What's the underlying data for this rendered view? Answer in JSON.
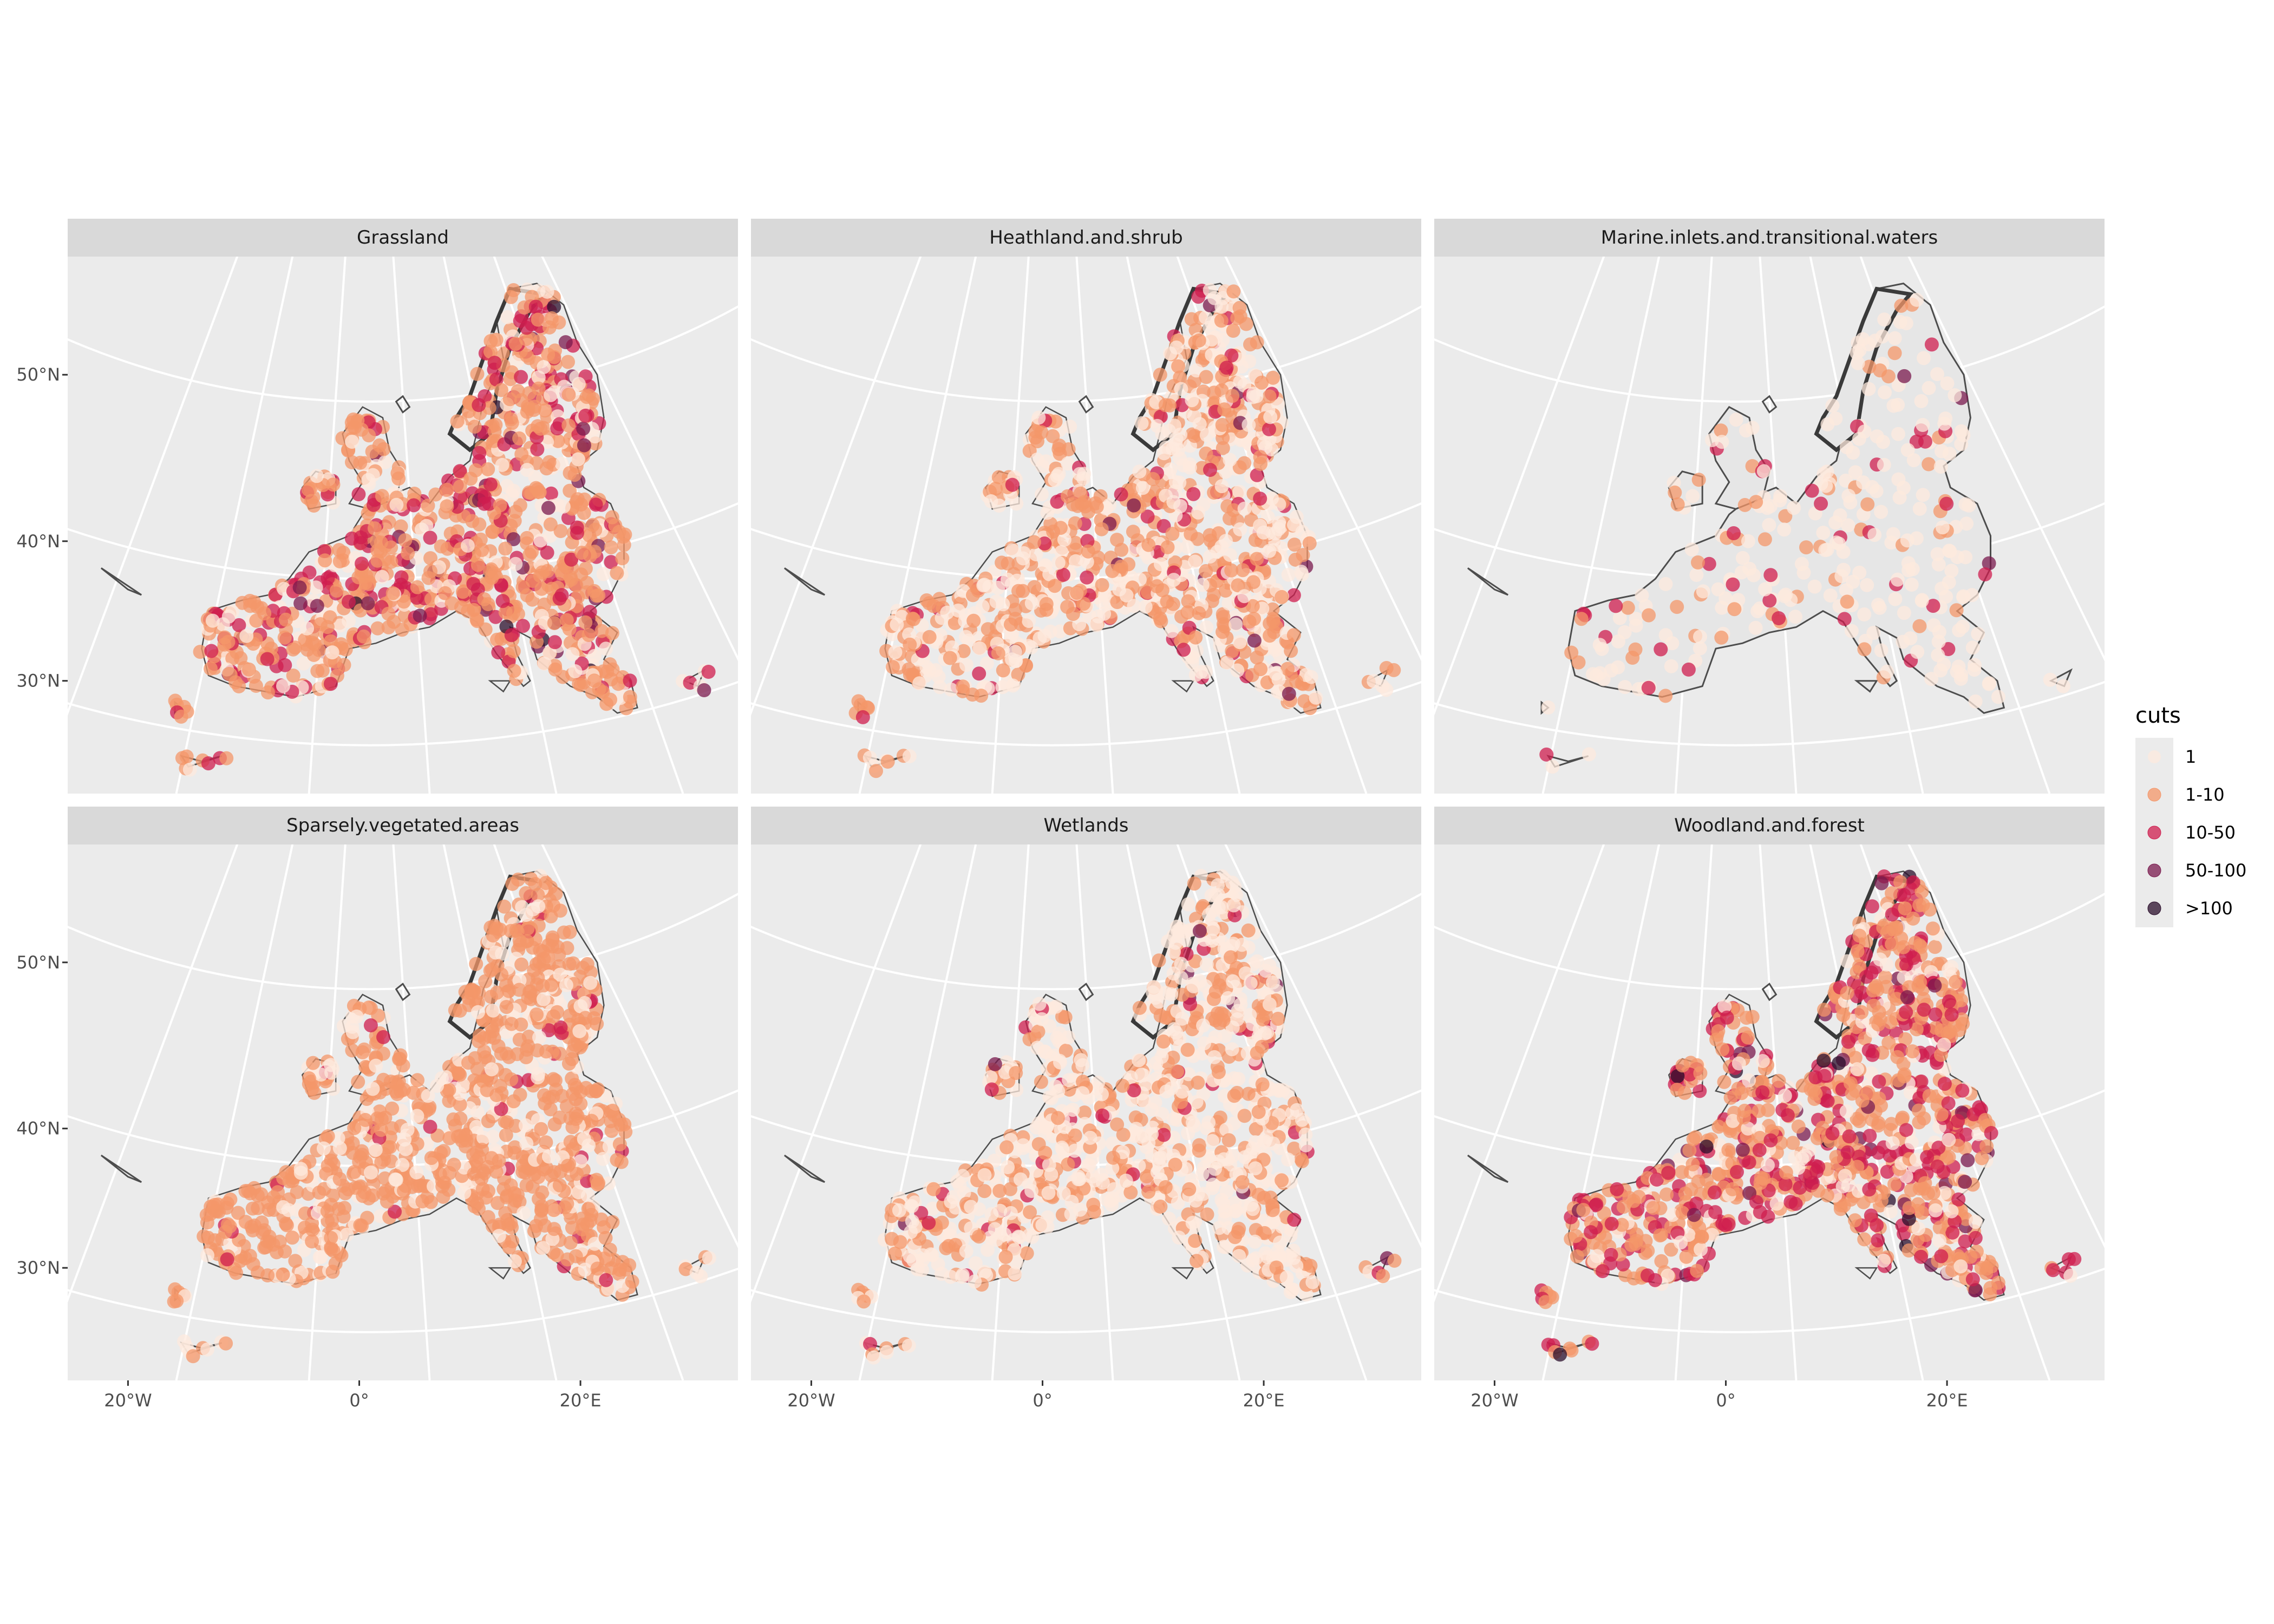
{
  "figure": {
    "panels": [
      {
        "id": "grassland",
        "label": "Grassland",
        "mix": [
          0.18,
          0.55,
          0.22,
          0.04,
          0.01
        ]
      },
      {
        "id": "heathland",
        "label": "Heathland.and.shrub",
        "mix": [
          0.45,
          0.48,
          0.06,
          0.01,
          0.0
        ]
      },
      {
        "id": "marine",
        "label": "Marine.inlets.and.transitional.waters",
        "mix": [
          0.7,
          0.2,
          0.09,
          0.01,
          0.0
        ]
      },
      {
        "id": "sparse",
        "label": "Sparsely.vegetated.areas",
        "mix": [
          0.25,
          0.7,
          0.05,
          0.0,
          0.0
        ]
      },
      {
        "id": "wetlands",
        "label": "Wetlands",
        "mix": [
          0.6,
          0.34,
          0.05,
          0.01,
          0.0
        ]
      },
      {
        "id": "woodland",
        "label": "Woodland.and.forest",
        "mix": [
          0.14,
          0.48,
          0.33,
          0.04,
          0.01
        ]
      }
    ],
    "lat_labels": [
      "50°N",
      "40°N",
      "30°N"
    ],
    "lon_labels": [
      "20°W",
      "0°",
      "20°E"
    ],
    "legend": {
      "title": "cuts",
      "items": [
        {
          "label": "1",
          "color": "#fde9de"
        },
        {
          "label": "1-10",
          "color": "#f4976a"
        },
        {
          "label": "10-50",
          "color": "#cf1e4f"
        },
        {
          "label": "50-100",
          "color": "#7a1a4e"
        },
        {
          "label": ">100",
          "color": "#2b0f2c"
        }
      ]
    },
    "colors": {
      "panel_bg": "#ebebeb",
      "strip_bg": "#d9d9d9",
      "grid": "#ffffff",
      "coast": "#4d4d4d",
      "land_fill": "#e6e6e6"
    }
  }
}
